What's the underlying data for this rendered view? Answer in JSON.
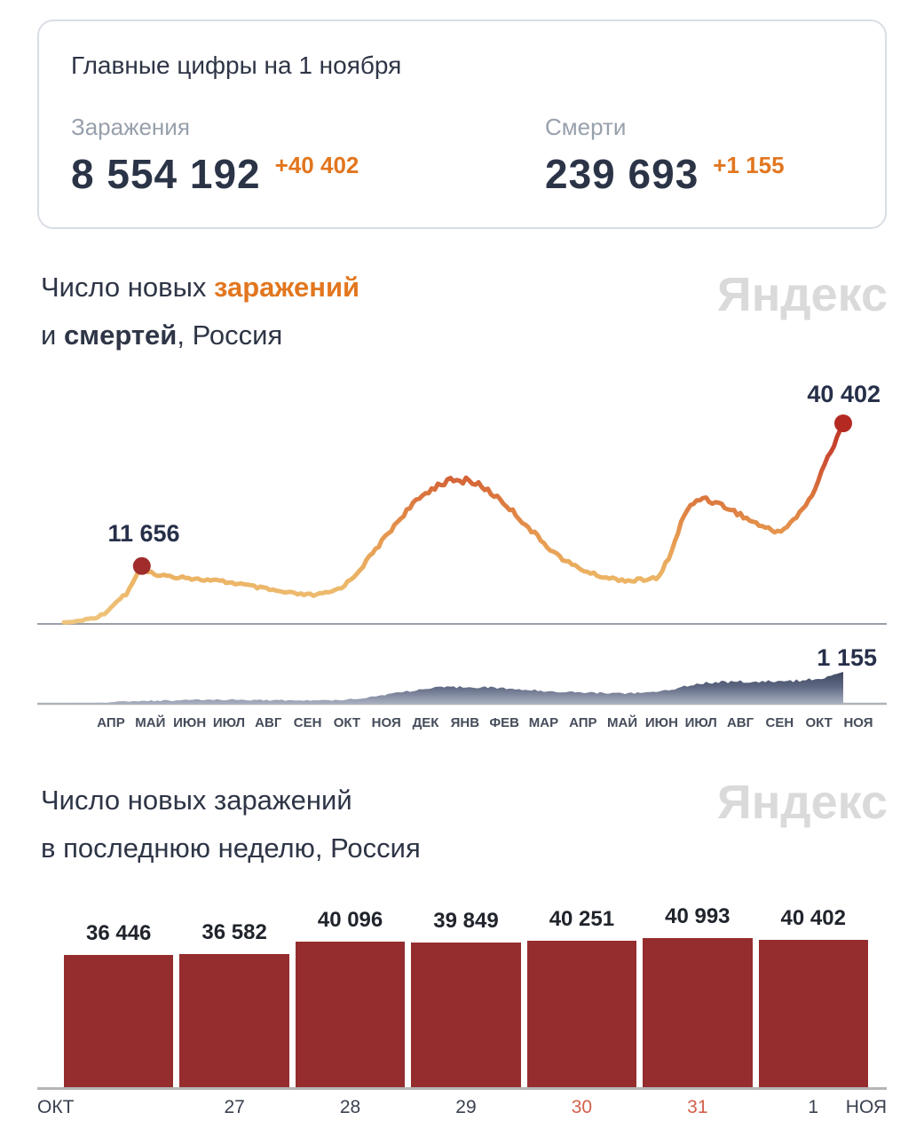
{
  "summary_card": {
    "title": "Главные цифры на 1 ноября",
    "stats": [
      {
        "label": "Заражения",
        "value": "8 554 192",
        "delta": "+40 402"
      },
      {
        "label": "Смерти",
        "value": "239 693",
        "delta": "+1 155"
      }
    ]
  },
  "watermark": "Яндекс",
  "colors": {
    "accent_orange": "#e2761f",
    "dark_text": "#2b3345",
    "gray_label": "#97a0ab",
    "bar_red": "#952d2f",
    "day_highlight": "#d4604b",
    "watermark_gray": "#dadada",
    "dot_first_peak": "#a02c2c",
    "dot_last": "#b42a22"
  },
  "chart_data": [
    {
      "type": "line",
      "name": "new-infections-daily",
      "title_lines": [
        [
          {
            "text": "Число новых ",
            "style": "plain"
          },
          {
            "text": "заражений",
            "style": "accent"
          }
        ],
        [
          {
            "text": "и ",
            "style": "plain"
          },
          {
            "text": "смертей",
            "style": "bold"
          },
          {
            "text": ", Россия",
            "style": "plain"
          }
        ]
      ],
      "ylim": [
        0,
        40402
      ],
      "annotations": [
        {
          "t": 0.1,
          "value": 11656,
          "label": "11 656"
        },
        {
          "t": 1,
          "value": 40402,
          "label": "40 402"
        }
      ],
      "x_axis": {
        "months": [
          "АПР",
          "МАЙ",
          "ИЮН",
          "ИЮЛ",
          "АВГ",
          "СЕН",
          "ОКТ",
          "НОЯ",
          "ДЕК",
          "ЯНВ",
          "ФЕВ",
          "МАР",
          "АПР",
          "МАЙ",
          "ИЮН",
          "ИЮЛ",
          "АВГ",
          "СЕН",
          "ОКТ",
          "НОЯ"
        ]
      },
      "points": [
        [
          0,
          300
        ],
        [
          0.01,
          400
        ],
        [
          0.02,
          600
        ],
        [
          0.03,
          900
        ],
        [
          0.04,
          1300
        ],
        [
          0.05,
          1900
        ],
        [
          0.055,
          2600
        ],
        [
          0.06,
          3200
        ],
        [
          0.065,
          4300
        ],
        [
          0.07,
          4600
        ],
        [
          0.075,
          5800
        ],
        [
          0.078,
          5300
        ],
        [
          0.082,
          6600
        ],
        [
          0.086,
          7800
        ],
        [
          0.09,
          8800
        ],
        [
          0.094,
          10100
        ],
        [
          0.097,
          10900
        ],
        [
          0.1,
          11656
        ],
        [
          0.104,
          10700
        ],
        [
          0.108,
          10100
        ],
        [
          0.112,
          10300
        ],
        [
          0.116,
          9900
        ],
        [
          0.12,
          10000
        ],
        [
          0.13,
          9700
        ],
        [
          0.14,
          9400
        ],
        [
          0.15,
          9600
        ],
        [
          0.16,
          9300
        ],
        [
          0.17,
          9000
        ],
        [
          0.18,
          8900
        ],
        [
          0.19,
          8700
        ],
        [
          0.2,
          8600
        ],
        [
          0.21,
          8400
        ],
        [
          0.22,
          8200
        ],
        [
          0.23,
          7900
        ],
        [
          0.24,
          7600
        ],
        [
          0.25,
          7300
        ],
        [
          0.26,
          7000
        ],
        [
          0.27,
          6700
        ],
        [
          0.28,
          6400
        ],
        [
          0.29,
          6200
        ],
        [
          0.3,
          6000
        ],
        [
          0.31,
          5900
        ],
        [
          0.32,
          5800
        ],
        [
          0.33,
          6000
        ],
        [
          0.34,
          6300
        ],
        [
          0.35,
          6900
        ],
        [
          0.36,
          7800
        ],
        [
          0.37,
          9200
        ],
        [
          0.38,
          11000
        ],
        [
          0.39,
          13000
        ],
        [
          0.4,
          15000
        ],
        [
          0.41,
          17000
        ],
        [
          0.42,
          19000
        ],
        [
          0.43,
          21000
        ],
        [
          0.44,
          22800
        ],
        [
          0.45,
          24300
        ],
        [
          0.46,
          25800
        ],
        [
          0.47,
          27000
        ],
        [
          0.48,
          28000
        ],
        [
          0.49,
          28600
        ],
        [
          0.5,
          29000
        ],
        [
          0.51,
          28400
        ],
        [
          0.515,
          29300
        ],
        [
          0.52,
          28800
        ],
        [
          0.53,
          28200
        ],
        [
          0.54,
          27300
        ],
        [
          0.55,
          26200
        ],
        [
          0.56,
          25000
        ],
        [
          0.57,
          23600
        ],
        [
          0.58,
          22000
        ],
        [
          0.59,
          20400
        ],
        [
          0.6,
          18800
        ],
        [
          0.61,
          17200
        ],
        [
          0.62,
          15700
        ],
        [
          0.63,
          14300
        ],
        [
          0.64,
          13100
        ],
        [
          0.65,
          12100
        ],
        [
          0.66,
          11300
        ],
        [
          0.67,
          10600
        ],
        [
          0.68,
          10000
        ],
        [
          0.69,
          9600
        ],
        [
          0.7,
          9200
        ],
        [
          0.71,
          9000
        ],
        [
          0.72,
          8800
        ],
        [
          0.73,
          8700
        ],
        [
          0.74,
          8900
        ],
        [
          0.75,
          9000
        ],
        [
          0.755,
          9200
        ],
        [
          0.76,
          9100
        ],
        [
          0.765,
          9600
        ],
        [
          0.77,
          11500
        ],
        [
          0.775,
          13000
        ],
        [
          0.78,
          14800
        ],
        [
          0.785,
          17000
        ],
        [
          0.79,
          19500
        ],
        [
          0.795,
          21500
        ],
        [
          0.8,
          23000
        ],
        [
          0.81,
          24500
        ],
        [
          0.815,
          25200
        ],
        [
          0.82,
          25500
        ],
        [
          0.83,
          24800
        ],
        [
          0.84,
          24200
        ],
        [
          0.85,
          23500
        ],
        [
          0.86,
          22700
        ],
        [
          0.87,
          21800
        ],
        [
          0.88,
          20900
        ],
        [
          0.89,
          20100
        ],
        [
          0.9,
          19400
        ],
        [
          0.905,
          19000
        ],
        [
          0.91,
          18800
        ],
        [
          0.915,
          18600
        ],
        [
          0.92,
          18900
        ],
        [
          0.925,
          19300
        ],
        [
          0.93,
          20000
        ],
        [
          0.94,
          21500
        ],
        [
          0.95,
          23500
        ],
        [
          0.96,
          26000
        ],
        [
          0.97,
          29500
        ],
        [
          0.98,
          33500
        ],
        [
          0.99,
          37000
        ],
        [
          1,
          40402
        ]
      ]
    },
    {
      "type": "area",
      "name": "new-deaths-daily",
      "ylim": [
        0,
        1155
      ],
      "annotations": [
        {
          "t": 1,
          "value": 1155,
          "label": "1 155"
        }
      ],
      "points": [
        [
          0,
          5
        ],
        [
          0.02,
          12
        ],
        [
          0.04,
          30
        ],
        [
          0.06,
          55
        ],
        [
          0.08,
          85
        ],
        [
          0.1,
          100
        ],
        [
          0.12,
          110
        ],
        [
          0.14,
          118
        ],
        [
          0.16,
          130
        ],
        [
          0.18,
          142
        ],
        [
          0.2,
          150
        ],
        [
          0.22,
          148
        ],
        [
          0.24,
          140
        ],
        [
          0.26,
          132
        ],
        [
          0.28,
          125
        ],
        [
          0.3,
          120
        ],
        [
          0.32,
          118
        ],
        [
          0.34,
          125
        ],
        [
          0.36,
          150
        ],
        [
          0.38,
          200
        ],
        [
          0.4,
          270
        ],
        [
          0.42,
          370
        ],
        [
          0.44,
          450
        ],
        [
          0.46,
          520
        ],
        [
          0.48,
          575
        ],
        [
          0.5,
          605
        ],
        [
          0.52,
          620
        ],
        [
          0.54,
          600
        ],
        [
          0.56,
          565
        ],
        [
          0.58,
          525
        ],
        [
          0.6,
          490
        ],
        [
          0.62,
          460
        ],
        [
          0.64,
          435
        ],
        [
          0.66,
          415
        ],
        [
          0.68,
          400
        ],
        [
          0.7,
          392
        ],
        [
          0.72,
          385
        ],
        [
          0.74,
          392
        ],
        [
          0.76,
          430
        ],
        [
          0.78,
          530
        ],
        [
          0.8,
          660
        ],
        [
          0.82,
          750
        ],
        [
          0.84,
          790
        ],
        [
          0.86,
          800
        ],
        [
          0.88,
          795
        ],
        [
          0.9,
          800
        ],
        [
          0.92,
          815
        ],
        [
          0.94,
          835
        ],
        [
          0.96,
          880
        ],
        [
          0.98,
          975
        ],
        [
          1,
          1155
        ]
      ]
    },
    {
      "type": "bar",
      "name": "new-infections-last-week",
      "title_lines": [
        [
          {
            "text": "Число новых заражений",
            "style": "plain"
          }
        ],
        [
          {
            "text": "в последнюю неделю, Россия",
            "style": "plain"
          }
        ]
      ],
      "values": [
        36446,
        36582,
        40096,
        39849,
        40251,
        40993,
        40402
      ],
      "value_labels": [
        "36 446",
        "36 582",
        "40 096",
        "39 849",
        "40 251",
        "40 993",
        "40 402"
      ],
      "day_labels": [
        "",
        "27",
        "28",
        "29",
        "30",
        "31",
        "1"
      ],
      "highlighted_days": [
        "30",
        "31"
      ],
      "edge_labels": {
        "left": "ОКТ",
        "right": "НОЯ"
      }
    }
  ]
}
